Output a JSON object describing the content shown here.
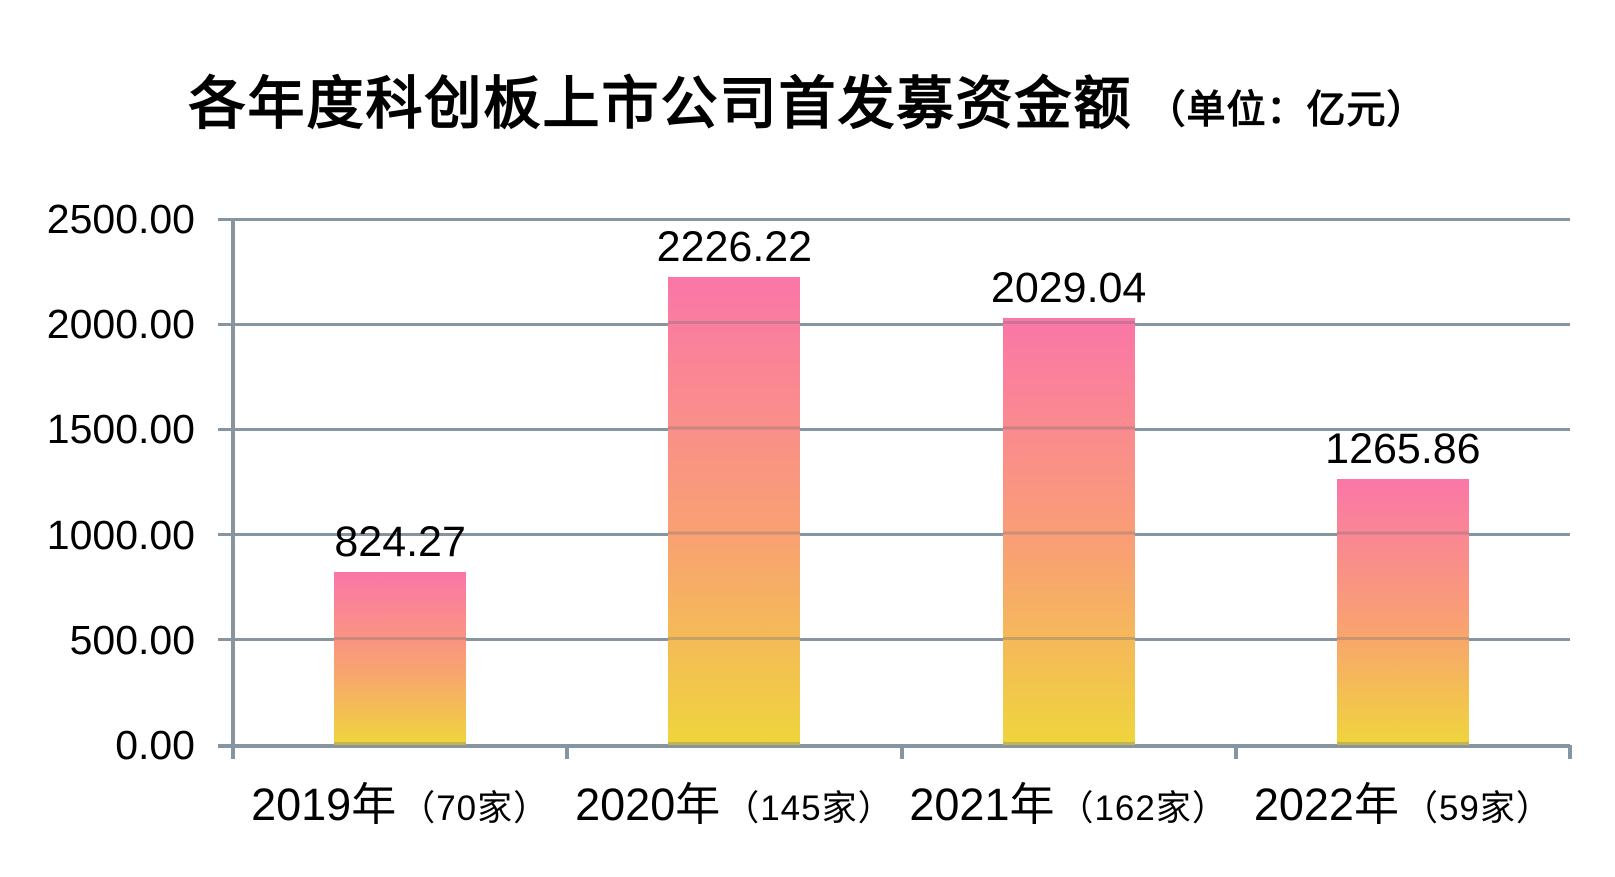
{
  "title": {
    "main": "各年度科创板上市公司首发募资金额",
    "unit": "（单位：亿元）"
  },
  "chart_data": {
    "type": "bar",
    "title": "各年度科创板上市公司首发募资金额（单位：亿元）",
    "unit_text": "亿元",
    "categories": [
      "2019年（70家）",
      "2020年（145家）",
      "2021年（162家）",
      "2022年（59家）"
    ],
    "category_parts": [
      {
        "year": "2019年",
        "count": "（70家）"
      },
      {
        "year": "2020年",
        "count": "（145家）"
      },
      {
        "year": "2021年",
        "count": "（162家）"
      },
      {
        "year": "2022年",
        "count": "（59家）"
      }
    ],
    "values": [
      824.27,
      2226.22,
      2029.04,
      1265.86
    ],
    "value_labels": [
      "824.27",
      "2226.22",
      "2029.04",
      "1265.86"
    ],
    "xlabel": "",
    "ylabel": "",
    "ylim": [
      0,
      2500
    ],
    "y_tick_step": 500,
    "y_tick_labels": [
      "2500.00",
      "2000.00",
      "1500.00",
      "1000.00",
      "500.00",
      "0.00"
    ],
    "grid": true,
    "legend": false,
    "colors": {
      "bar_gradient_top": "#FA76A8",
      "bar_gradient_bottom": "#EFD53C",
      "grid_line": "#8795A1",
      "text": "#000000",
      "background": "#FFFFFF"
    }
  }
}
